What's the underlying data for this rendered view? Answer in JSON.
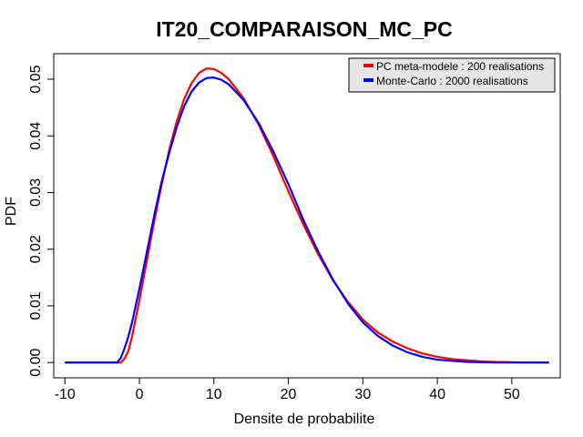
{
  "chart_data": {
    "type": "line",
    "title": "IT20_COMPARAISON_MC_PC",
    "xlabel": "Densite de probabilite",
    "ylabel": "PDF",
    "xlim": [
      -11.5,
      56.5
    ],
    "ylim": [
      -0.0027,
      0.0545
    ],
    "x_ticks": [
      "-10",
      "0",
      "10",
      "20",
      "30",
      "40",
      "50"
    ],
    "y_ticks": [
      "0.00",
      "0.01",
      "0.02",
      "0.03",
      "0.04",
      "0.05"
    ],
    "grid": false,
    "legend_position": "top-right",
    "series": [
      {
        "name": "PC meta-modele : 200 realisations",
        "color": "#ff0000",
        "x": [
          -10,
          -3,
          -2.5,
          -2,
          -1.5,
          -1,
          0,
          1,
          2,
          3,
          4,
          5,
          6,
          7,
          8,
          9,
          10,
          11,
          12,
          14,
          16,
          18,
          20,
          22,
          24,
          26,
          28,
          30,
          32,
          34,
          36,
          38,
          40,
          42,
          44,
          46,
          48,
          50,
          52,
          55
        ],
        "y": [
          0,
          0,
          0,
          0.0007,
          0.002,
          0.0045,
          0.011,
          0.018,
          0.025,
          0.0315,
          0.0375,
          0.0425,
          0.0465,
          0.0493,
          0.0511,
          0.0519,
          0.0518,
          0.0511,
          0.05,
          0.0466,
          0.042,
          0.0364,
          0.0302,
          0.0244,
          0.0191,
          0.0145,
          0.0107,
          0.0076,
          0.0053,
          0.0037,
          0.0025,
          0.0016,
          0.001,
          0.0006,
          0.0004,
          0.0002,
          0.0001,
          5e-05,
          0,
          0
        ]
      },
      {
        "name": "Monte-Carlo : 2000 realisations",
        "color": "#0000ff",
        "x": [
          -10,
          -3,
          -2.5,
          -2,
          -1.5,
          -1,
          0,
          1,
          2,
          3,
          4,
          5,
          6,
          7,
          8,
          9,
          10,
          11,
          12,
          14,
          16,
          18,
          20,
          22,
          24,
          26,
          28,
          30,
          32,
          34,
          36,
          38,
          40,
          42,
          44,
          46,
          48,
          50,
          55
        ],
        "y": [
          0,
          0,
          0.0008,
          0.0025,
          0.0045,
          0.007,
          0.013,
          0.0195,
          0.026,
          0.032,
          0.037,
          0.0415,
          0.0452,
          0.0478,
          0.0494,
          0.0502,
          0.0503,
          0.0499,
          0.0491,
          0.0463,
          0.0423,
          0.0372,
          0.0315,
          0.0252,
          0.0196,
          0.0146,
          0.0104,
          0.0071,
          0.0047,
          0.003,
          0.0018,
          0.001,
          0.0005,
          0.0003,
          0.0001,
          5e-05,
          0,
          0,
          0
        ]
      }
    ]
  }
}
